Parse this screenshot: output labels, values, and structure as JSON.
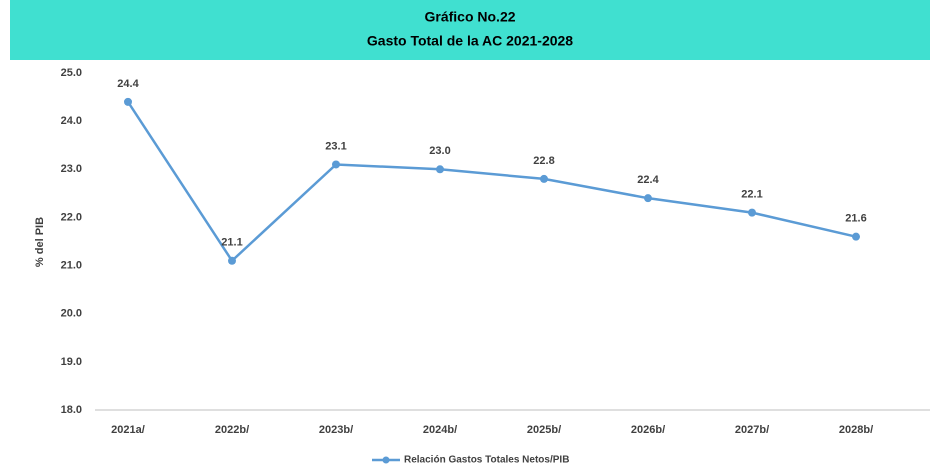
{
  "chart_data": {
    "type": "line",
    "title": "Gráfico No.22",
    "subtitle": "Gasto Total de la AC 2021-2028",
    "y_label": "% del PIB",
    "categories": [
      "2021a/",
      "2022b/",
      "2023b/",
      "2024b/",
      "2025b/",
      "2026b/",
      "2027b/",
      "2028b/"
    ],
    "series": [
      {
        "name": "Relación Gastos Totales Netos/PIB",
        "color": "#5b9bd5",
        "values": [
          24.4,
          21.1,
          23.1,
          23.0,
          22.8,
          22.4,
          22.1,
          21.6
        ],
        "value_labels": [
          "24.4",
          "21.1",
          "23.1",
          "23.0",
          "22.8",
          "22.4",
          "22.1",
          "21.6"
        ]
      }
    ],
    "ylim": [
      18,
      25
    ],
    "yticks": [
      {
        "value": 18,
        "label": "18.0"
      },
      {
        "value": 19,
        "label": "19.0"
      },
      {
        "value": 20,
        "label": "20.0"
      },
      {
        "value": 21,
        "label": "21.0"
      },
      {
        "value": 22,
        "label": "22.0"
      },
      {
        "value": 23,
        "label": "23.0"
      },
      {
        "value": 24,
        "label": "24.0"
      },
      {
        "value": 25,
        "label": "25.0"
      }
    ],
    "grid": false,
    "legend": "bottom",
    "title_background": "#40e0d0"
  }
}
